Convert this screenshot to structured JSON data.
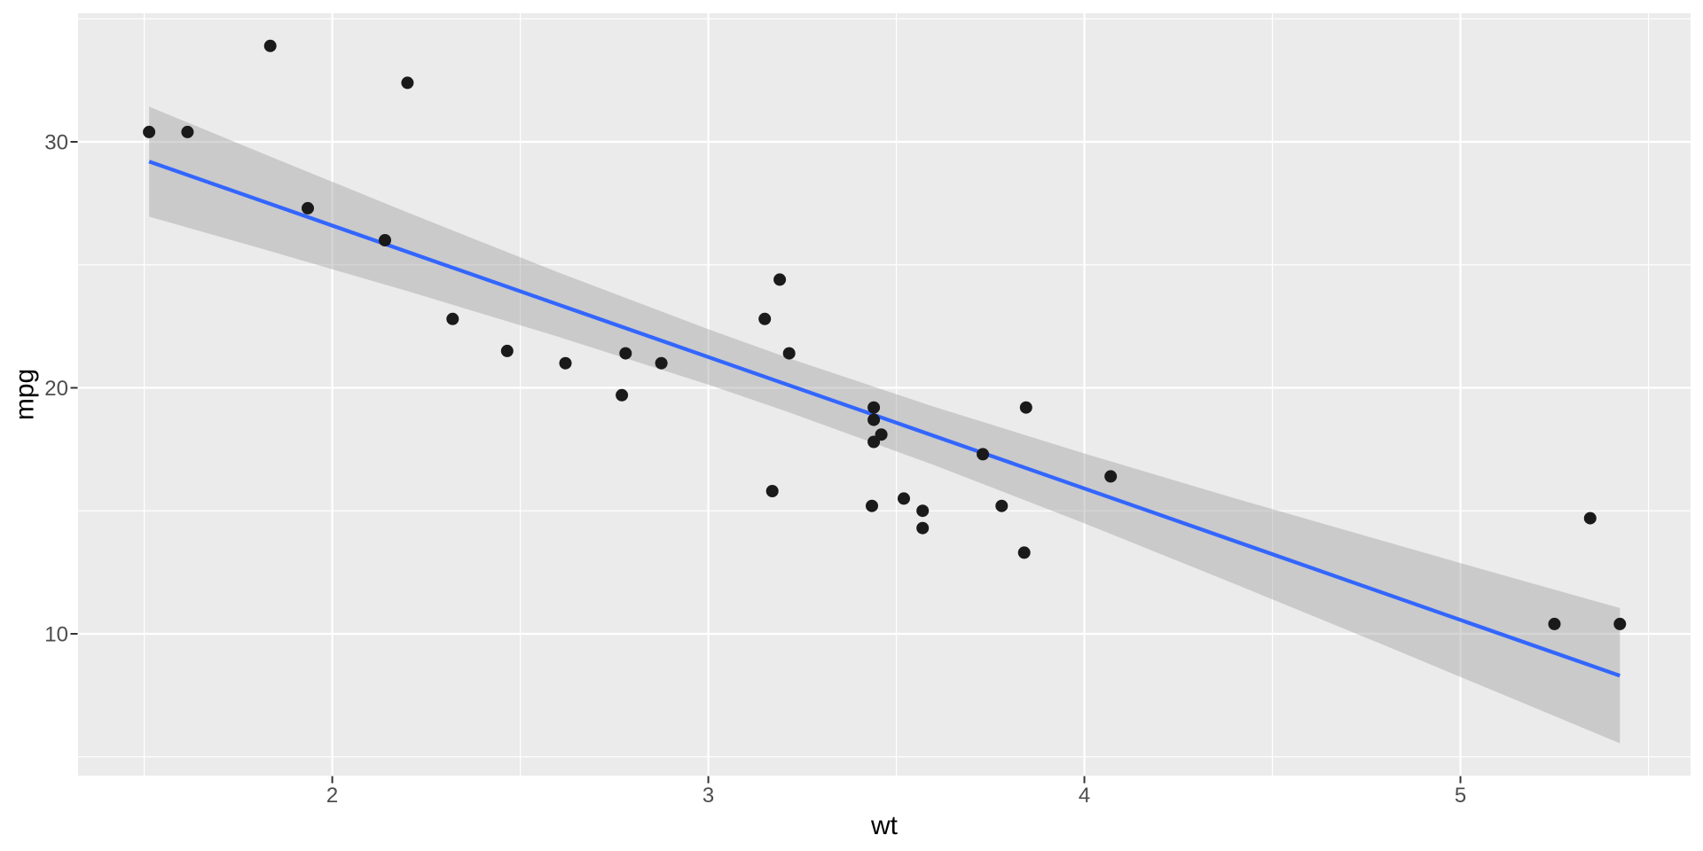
{
  "chart_data": {
    "type": "scatter",
    "xlabel": "wt",
    "ylabel": "mpg",
    "xlim": [
      1.324,
      5.612
    ],
    "ylim": [
      4.234,
      35.225
    ],
    "x_ticks": [
      2,
      3,
      4,
      5
    ],
    "x_minor_ticks": [
      1.5,
      2.5,
      3.5,
      4.5,
      5.5
    ],
    "y_ticks": [
      10,
      20,
      30
    ],
    "y_minor_ticks": [
      5,
      15,
      25,
      35
    ],
    "grid": true,
    "legend": false,
    "points": [
      [
        2.62,
        21.0
      ],
      [
        2.875,
        21.0
      ],
      [
        2.32,
        22.8
      ],
      [
        3.215,
        21.4
      ],
      [
        3.44,
        18.7
      ],
      [
        3.46,
        18.1
      ],
      [
        3.57,
        14.3
      ],
      [
        3.19,
        24.4
      ],
      [
        3.15,
        22.8
      ],
      [
        3.44,
        19.2
      ],
      [
        3.44,
        17.8
      ],
      [
        4.07,
        16.4
      ],
      [
        3.73,
        17.3
      ],
      [
        3.78,
        15.2
      ],
      [
        5.25,
        10.4
      ],
      [
        5.424,
        10.4
      ],
      [
        5.345,
        14.7
      ],
      [
        2.2,
        32.4
      ],
      [
        1.615,
        30.4
      ],
      [
        1.835,
        33.9
      ],
      [
        2.465,
        21.5
      ],
      [
        3.52,
        15.5
      ],
      [
        3.435,
        15.2
      ],
      [
        3.84,
        13.3
      ],
      [
        3.845,
        19.2
      ],
      [
        1.935,
        27.3
      ],
      [
        2.14,
        26.0
      ],
      [
        1.513,
        30.4
      ],
      [
        3.17,
        15.8
      ],
      [
        2.77,
        19.7
      ],
      [
        3.57,
        15.0
      ],
      [
        2.78,
        21.4
      ]
    ],
    "regression_line": {
      "x": [
        1.513,
        5.424
      ],
      "y": [
        29.198,
        8.298
      ]
    },
    "ribbon": [
      [
        1.513,
        26.96,
        31.43
      ],
      [
        1.8,
        25.71,
        29.62
      ],
      [
        2.2,
        23.93,
        27.13
      ],
      [
        2.6,
        22.08,
        24.7
      ],
      [
        3.0,
        20.13,
        22.38
      ],
      [
        3.217,
        18.99,
        21.19
      ],
      [
        3.6,
        16.86,
        19.23
      ],
      [
        4.0,
        14.49,
        17.33
      ],
      [
        4.4,
        12.03,
        15.51
      ],
      [
        4.8,
        9.52,
        13.75
      ],
      [
        5.1,
        7.61,
        12.44
      ],
      [
        5.424,
        5.55,
        11.05
      ]
    ],
    "colors": {
      "panel_bg": "#EBEBEB",
      "grid": "#FFFFFF",
      "point": "#1A1A1A",
      "smooth_line": "#3366FF",
      "ribbon_fill": "rgba(153,153,153,0.4)",
      "tick_mark": "#333333",
      "tick_label": "#4D4D4D",
      "axis_title": "#000000"
    }
  }
}
